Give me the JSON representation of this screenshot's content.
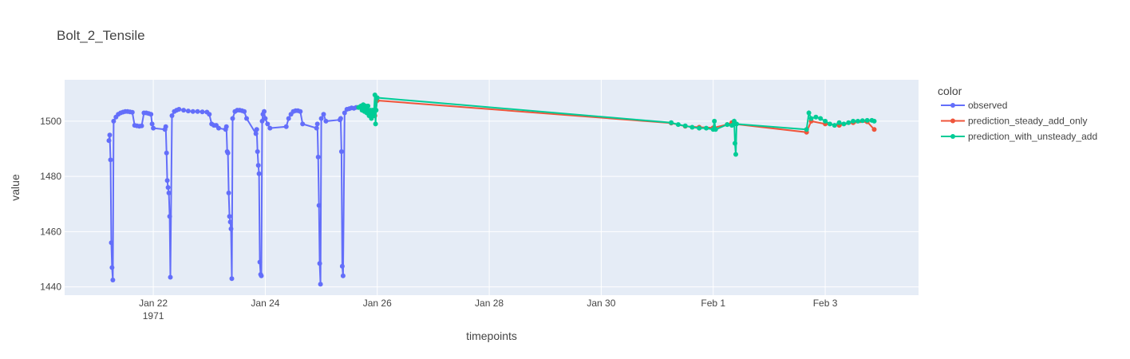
{
  "chart_data": {
    "type": "line",
    "title": "Bolt_2_Tensile",
    "xlabel": "timepoints",
    "ylabel": "value",
    "x_axis_type": "date",
    "xlim": [
      "1971-01-20 10:00",
      "1971-02-04 16:00"
    ],
    "ylim": [
      1437,
      1515
    ],
    "x_ticks": [
      {
        "x": "1971-01-22",
        "label": "Jan 22",
        "sublabel": "1971"
      },
      {
        "x": "1971-01-24",
        "label": "Jan 24",
        "sublabel": ""
      },
      {
        "x": "1971-01-26",
        "label": "Jan 26",
        "sublabel": ""
      },
      {
        "x": "1971-01-28",
        "label": "Jan 28",
        "sublabel": ""
      },
      {
        "x": "1971-01-30",
        "label": "Jan 30",
        "sublabel": ""
      },
      {
        "x": "1971-02-01",
        "label": "Feb 1",
        "sublabel": ""
      },
      {
        "x": "1971-02-03",
        "label": "Feb 3",
        "sublabel": ""
      }
    ],
    "y_ticks": [
      1440,
      1460,
      1480,
      1500
    ],
    "grid": true,
    "plot_background": "#e5ecf6",
    "legend": {
      "title": "color",
      "position": "right"
    },
    "series": [
      {
        "name": "observed",
        "color": "#636efa",
        "mode": "lines+markers",
        "points": [
          [
            "1971-01-21 05:00",
            1493
          ],
          [
            "1971-01-21 05:20",
            1495
          ],
          [
            "1971-01-21 05:40",
            1486
          ],
          [
            "1971-01-21 06:00",
            1456
          ],
          [
            "1971-01-21 06:20",
            1447
          ],
          [
            "1971-01-21 06:40",
            1442.5
          ],
          [
            "1971-01-21 07:00",
            1500
          ],
          [
            "1971-01-21 08:00",
            1501.5
          ],
          [
            "1971-01-21 09:00",
            1502.5
          ],
          [
            "1971-01-21 10:00",
            1503
          ],
          [
            "1971-01-21 11:00",
            1503.3
          ],
          [
            "1971-01-21 12:00",
            1503.5
          ],
          [
            "1971-01-21 13:00",
            1503.5
          ],
          [
            "1971-01-21 14:00",
            1503.4
          ],
          [
            "1971-01-21 15:00",
            1503.2
          ],
          [
            "1971-01-21 16:00",
            1498.5
          ],
          [
            "1971-01-21 17:00",
            1498.3
          ],
          [
            "1971-01-21 18:00",
            1498.2
          ],
          [
            "1971-01-21 19:00",
            1498.3
          ],
          [
            "1971-01-21 20:00",
            1503
          ],
          [
            "1971-01-21 21:00",
            1503
          ],
          [
            "1971-01-21 22:00",
            1502.8
          ],
          [
            "1971-01-21 23:00",
            1502.5
          ],
          [
            "1971-01-21 23:30",
            1499
          ],
          [
            "1971-01-22 00:00",
            1497.5
          ],
          [
            "1971-01-22 05:00",
            1497
          ],
          [
            "1971-01-22 05:20",
            1498
          ],
          [
            "1971-01-22 05:40",
            1488.5
          ],
          [
            "1971-01-22 06:00",
            1478.5
          ],
          [
            "1971-01-22 06:20",
            1476
          ],
          [
            "1971-01-22 06:40",
            1474
          ],
          [
            "1971-01-22 07:00",
            1465.5
          ],
          [
            "1971-01-22 07:20",
            1443.5
          ],
          [
            "1971-01-22 08:00",
            1502
          ],
          [
            "1971-01-22 09:00",
            1503.5
          ],
          [
            "1971-01-22 10:00",
            1504
          ],
          [
            "1971-01-22 11:00",
            1504.3
          ],
          [
            "1971-01-22 13:00",
            1504
          ],
          [
            "1971-01-22 15:00",
            1503.7
          ],
          [
            "1971-01-22 17:00",
            1503.5
          ],
          [
            "1971-01-22 19:00",
            1503.5
          ],
          [
            "1971-01-22 21:00",
            1503.4
          ],
          [
            "1971-01-22 23:00",
            1503.3
          ],
          [
            "1971-01-23 00:00",
            1502.5
          ],
          [
            "1971-01-23 01:00",
            1499
          ],
          [
            "1971-01-23 02:00",
            1498.5
          ],
          [
            "1971-01-23 03:00",
            1498.5
          ],
          [
            "1971-01-23 04:00",
            1497.5
          ],
          [
            "1971-01-23 07:00",
            1497
          ],
          [
            "1971-01-23 07:20",
            1498
          ],
          [
            "1971-01-23 07:40",
            1489
          ],
          [
            "1971-01-23 08:00",
            1488.5
          ],
          [
            "1971-01-23 08:20",
            1474
          ],
          [
            "1971-01-23 08:40",
            1465.5
          ],
          [
            "1971-01-23 09:00",
            1463.5
          ],
          [
            "1971-01-23 09:20",
            1461
          ],
          [
            "1971-01-23 09:40",
            1443
          ],
          [
            "1971-01-23 10:00",
            1501
          ],
          [
            "1971-01-23 11:00",
            1503.5
          ],
          [
            "1971-01-23 12:00",
            1504
          ],
          [
            "1971-01-23 13:00",
            1504
          ],
          [
            "1971-01-23 14:00",
            1503.8
          ],
          [
            "1971-01-23 15:00",
            1503.5
          ],
          [
            "1971-01-23 16:00",
            1501
          ],
          [
            "1971-01-23 20:00",
            1495.5
          ],
          [
            "1971-01-23 20:20",
            1497
          ],
          [
            "1971-01-23 20:40",
            1489
          ],
          [
            "1971-01-23 21:00",
            1484
          ],
          [
            "1971-01-23 21:20",
            1481
          ],
          [
            "1971-01-23 21:40",
            1449
          ],
          [
            "1971-01-23 22:00",
            1444.5
          ],
          [
            "1971-01-23 22:20",
            1444
          ],
          [
            "1971-01-23 22:40",
            1500
          ],
          [
            "1971-01-23 23:00",
            1502.5
          ],
          [
            "1971-01-23 23:30",
            1503.5
          ],
          [
            "1971-01-24 00:00",
            1501
          ],
          [
            "1971-01-24 01:00",
            1499
          ],
          [
            "1971-01-24 02:00",
            1497.5
          ],
          [
            "1971-01-24 09:00",
            1498
          ],
          [
            "1971-01-24 10:00",
            1501
          ],
          [
            "1971-01-24 11:00",
            1502.5
          ],
          [
            "1971-01-24 12:00",
            1503.5
          ],
          [
            "1971-01-24 13:00",
            1503.8
          ],
          [
            "1971-01-24 14:00",
            1503.8
          ],
          [
            "1971-01-24 15:00",
            1503.5
          ],
          [
            "1971-01-24 16:00",
            1499
          ],
          [
            "1971-01-24 22:00",
            1497.5
          ],
          [
            "1971-01-24 22:20",
            1499
          ],
          [
            "1971-01-24 22:40",
            1487
          ],
          [
            "1971-01-24 23:00",
            1469.5
          ],
          [
            "1971-01-24 23:20",
            1448.5
          ],
          [
            "1971-01-24 23:40",
            1441
          ],
          [
            "1971-01-25 00:00",
            1501
          ],
          [
            "1971-01-25 01:00",
            1502.5
          ],
          [
            "1971-01-25 02:00",
            1500
          ],
          [
            "1971-01-25 08:00",
            1500.5
          ],
          [
            "1971-01-25 08:20",
            1501
          ],
          [
            "1971-01-25 08:40",
            1489
          ],
          [
            "1971-01-25 09:00",
            1447.5
          ],
          [
            "1971-01-25 09:20",
            1444
          ],
          [
            "1971-01-25 10:00",
            1503
          ],
          [
            "1971-01-25 11:00",
            1504.3
          ],
          [
            "1971-01-25 12:00",
            1504.5
          ],
          [
            "1971-01-25 13:00",
            1504.8
          ],
          [
            "1971-01-25 14:00",
            1504.7
          ],
          [
            "1971-01-25 15:00",
            1505
          ],
          [
            "1971-01-25 16:00",
            1505
          ]
        ]
      },
      {
        "name": "prediction_steady_add_only",
        "color": "#ef553b",
        "mode": "lines+markers",
        "points": [
          [
            "1971-01-25 16:00",
            1505
          ],
          [
            "1971-01-25 18:00",
            1504.5
          ],
          [
            "1971-01-25 20:00",
            1504
          ],
          [
            "1971-01-25 21:00",
            1502.5
          ],
          [
            "1971-01-25 22:00",
            1503
          ],
          [
            "1971-01-25 23:00",
            1502
          ],
          [
            "1971-01-26 00:00",
            1507.5
          ],
          [
            "1971-01-31 06:00",
            1499.3
          ],
          [
            "1971-01-31 12:00",
            1498.2
          ],
          [
            "1971-01-31 18:00",
            1497.8
          ],
          [
            "1971-02-01 00:00",
            1497.6
          ],
          [
            "1971-02-01 06:00",
            1498.8
          ],
          [
            "1971-02-01 08:00",
            1499.5
          ],
          [
            "1971-02-01 09:00",
            1499
          ],
          [
            "1971-02-02 16:00",
            1496
          ],
          [
            "1971-02-02 18:00",
            1500
          ],
          [
            "1971-02-03 00:00",
            1499
          ],
          [
            "1971-02-03 06:00",
            1498.5
          ],
          [
            "1971-02-03 12:00",
            1499.5
          ],
          [
            "1971-02-03 18:00",
            1499.8
          ],
          [
            "1971-02-03 21:00",
            1497
          ]
        ]
      },
      {
        "name": "prediction_with_unsteady_add",
        "color": "#00cc96",
        "mode": "lines+markers",
        "points": [
          [
            "1971-01-25 16:00",
            1505
          ],
          [
            "1971-01-25 17:00",
            1505.5
          ],
          [
            "1971-01-25 17:30",
            1504
          ],
          [
            "1971-01-25 18:00",
            1506
          ],
          [
            "1971-01-25 18:30",
            1503.5
          ],
          [
            "1971-01-25 19:00",
            1505.5
          ],
          [
            "1971-01-25 19:30",
            1503
          ],
          [
            "1971-01-25 20:00",
            1505.5
          ],
          [
            "1971-01-25 20:30",
            1502
          ],
          [
            "1971-01-25 21:00",
            1504
          ],
          [
            "1971-01-25 21:30",
            1501
          ],
          [
            "1971-01-25 22:00",
            1504
          ],
          [
            "1971-01-25 22:30",
            1502
          ],
          [
            "1971-01-25 23:00",
            1509.5
          ],
          [
            "1971-01-25 23:15",
            1499
          ],
          [
            "1971-01-25 23:30",
            1504
          ],
          [
            "1971-01-26 00:00",
            1508.5
          ],
          [
            "1971-01-31 06:00",
            1499.5
          ],
          [
            "1971-01-31 09:00",
            1498.8
          ],
          [
            "1971-01-31 12:00",
            1498.3
          ],
          [
            "1971-01-31 15:00",
            1497.8
          ],
          [
            "1971-01-31 18:00",
            1497.5
          ],
          [
            "1971-01-31 21:00",
            1497.5
          ],
          [
            "1971-02-01 00:00",
            1497
          ],
          [
            "1971-02-01 00:30",
            1500
          ],
          [
            "1971-02-01 01:00",
            1497
          ],
          [
            "1971-02-01 06:00",
            1498.8
          ],
          [
            "1971-02-01 08:00",
            1498.5
          ],
          [
            "1971-02-01 09:00",
            1500
          ],
          [
            "1971-02-01 09:20",
            1492
          ],
          [
            "1971-02-01 09:40",
            1488
          ],
          [
            "1971-02-01 10:00",
            1499
          ],
          [
            "1971-02-02 16:00",
            1497
          ],
          [
            "1971-02-02 17:00",
            1503
          ],
          [
            "1971-02-02 18:00",
            1501
          ],
          [
            "1971-02-02 20:00",
            1501.5
          ],
          [
            "1971-02-02 22:00",
            1501
          ],
          [
            "1971-02-03 00:00",
            1500
          ],
          [
            "1971-02-03 02:00",
            1499
          ],
          [
            "1971-02-03 04:00",
            1498.5
          ],
          [
            "1971-02-03 06:00",
            1499.5
          ],
          [
            "1971-02-03 08:00",
            1499
          ],
          [
            "1971-02-03 10:00",
            1499.5
          ],
          [
            "1971-02-03 12:00",
            1500
          ],
          [
            "1971-02-03 14:00",
            1500
          ],
          [
            "1971-02-03 16:00",
            1500.2
          ],
          [
            "1971-02-03 18:00",
            1500.3
          ],
          [
            "1971-02-03 20:00",
            1500.3
          ],
          [
            "1971-02-03 21:00",
            1500
          ]
        ]
      }
    ]
  }
}
